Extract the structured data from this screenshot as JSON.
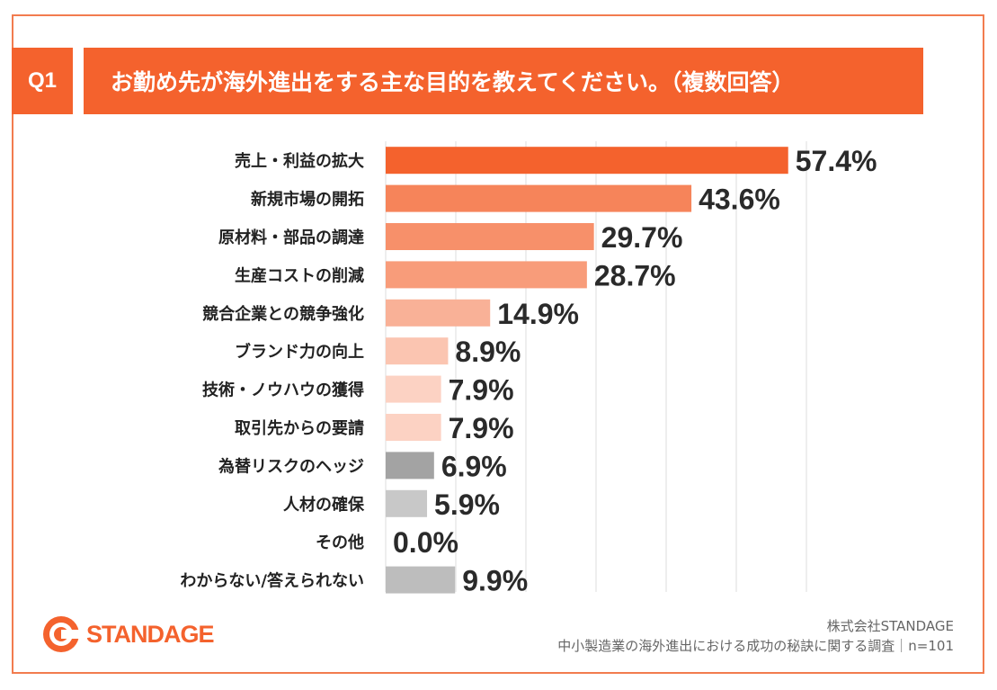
{
  "question": {
    "number": "Q1",
    "title": "お勤め先が海外進出をする主な目的を教えてください。（複数回答）"
  },
  "chart_data": {
    "type": "bar",
    "orientation": "horizontal",
    "title": "お勤め先が海外進出をする主な目的を教えてください。（複数回答）",
    "unit": "%",
    "xlim": [
      0,
      60
    ],
    "grid": true,
    "categories": [
      "売上・利益の拡大",
      "新規市場の開拓",
      "原材料・部品の調達",
      "生産コストの削減",
      "競合企業との競争強化",
      "ブランド力の向上",
      "技術・ノウハウの獲得",
      "取引先からの要請",
      "為替リスクのヘッジ",
      "人材の確保",
      "その他",
      "わからない/答えられない"
    ],
    "values": [
      57.4,
      43.6,
      29.7,
      28.7,
      14.9,
      8.9,
      7.9,
      7.9,
      6.9,
      5.9,
      0.0,
      9.9
    ],
    "value_labels": [
      "57.4%",
      "43.6%",
      "29.7%",
      "28.7%",
      "14.9%",
      "8.9%",
      "7.9%",
      "7.9%",
      "6.9%",
      "5.9%",
      "0.0%",
      "9.9%"
    ],
    "bar_colors": [
      "#f4622d",
      "#f6845a",
      "#f7906a",
      "#f89c7a",
      "#f9b197",
      "#fbc5b1",
      "#fcd2c3",
      "#fcd2c3",
      "#a3a3a3",
      "#c8c8c8",
      "#c8c8c8",
      "#bdbdbd"
    ]
  },
  "logo": {
    "text": "STANDAGE",
    "icon": "standage-logo-icon"
  },
  "footer": {
    "company": "株式会社STANDAGE",
    "survey": "中小製造業の海外進出における成功の秘訣に関する調査｜n=101"
  },
  "colors": {
    "accent": "#f4622d",
    "frame": "#f27c4f"
  }
}
